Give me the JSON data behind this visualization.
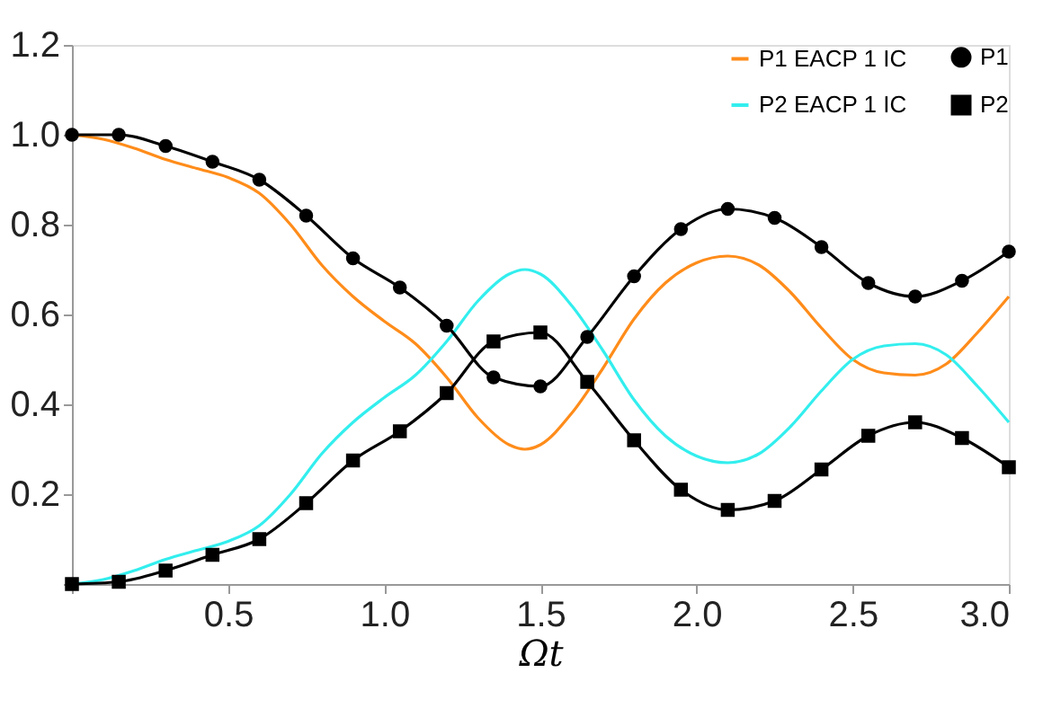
{
  "chart_data": {
    "type": "line",
    "xlabel": "Ωt",
    "xlim": [
      0,
      3.0
    ],
    "ylim": [
      0,
      1.2
    ],
    "xticks": [
      {
        "value": 0,
        "label": null
      },
      0.5,
      {
        "value": 1,
        "label": "1.0"
      },
      1.5,
      {
        "value": 2,
        "label": "2.0"
      },
      2.5,
      {
        "value": 3,
        "label": "3.0"
      }
    ],
    "yticks": [
      {
        "value": 0,
        "label": null
      },
      0.2,
      0.4,
      0.6,
      0.8,
      {
        "value": 1,
        "label": "1.0"
      },
      1.2
    ],
    "grid": false,
    "legend": "top right",
    "line_style": "solid",
    "series": [
      {
        "name": "P1 EACP 1 IC",
        "color": "#ff8c1a",
        "marker": "none",
        "x": [
          0,
          0.1,
          0.2,
          0.3,
          0.4,
          0.5,
          0.6,
          0.7,
          0.8,
          0.9,
          1.0,
          1.1,
          1.2,
          1.3,
          1.4,
          1.45,
          1.5,
          1.6,
          1.7,
          1.8,
          1.9,
          2.0,
          2.1,
          2.2,
          2.3,
          2.4,
          2.5,
          2.6,
          2.7,
          2.8,
          2.9,
          3.0
        ],
        "values": [
          1.0,
          0.99,
          0.97,
          0.945,
          0.925,
          0.905,
          0.87,
          0.8,
          0.71,
          0.64,
          0.585,
          0.535,
          0.46,
          0.37,
          0.31,
          0.3,
          0.31,
          0.38,
          0.48,
          0.59,
          0.67,
          0.715,
          0.73,
          0.71,
          0.65,
          0.57,
          0.5,
          0.47,
          0.465,
          0.49,
          0.56,
          0.64
        ]
      },
      {
        "name": "P2 EACP 1 IC",
        "color": "#33eeee",
        "marker": "none",
        "x": [
          0,
          0.1,
          0.2,
          0.3,
          0.4,
          0.5,
          0.6,
          0.7,
          0.8,
          0.9,
          1.0,
          1.1,
          1.2,
          1.3,
          1.4,
          1.45,
          1.5,
          1.6,
          1.7,
          1.8,
          1.9,
          2.0,
          2.1,
          2.2,
          2.3,
          2.4,
          2.5,
          2.6,
          2.7,
          2.8,
          2.9,
          3.0
        ],
        "values": [
          0,
          0.01,
          0.03,
          0.055,
          0.075,
          0.095,
          0.13,
          0.2,
          0.29,
          0.36,
          0.415,
          0.465,
          0.54,
          0.63,
          0.69,
          0.7,
          0.69,
          0.62,
          0.52,
          0.41,
          0.33,
          0.285,
          0.27,
          0.29,
          0.35,
          0.43,
          0.5,
          0.53,
          0.535,
          0.51,
          0.44,
          0.36
        ]
      },
      {
        "name": "P1",
        "color": "#000000",
        "marker": "circle",
        "x": [
          0,
          0.15,
          0.3,
          0.45,
          0.6,
          0.75,
          0.9,
          1.05,
          1.2,
          1.35,
          1.5,
          1.65,
          1.8,
          1.95,
          2.1,
          2.25,
          2.4,
          2.55,
          2.7,
          2.85,
          3.0
        ],
        "values": [
          1.0,
          1.0,
          0.975,
          0.94,
          0.9,
          0.82,
          0.725,
          0.66,
          0.575,
          0.46,
          0.44,
          0.55,
          0.685,
          0.79,
          0.835,
          0.815,
          0.75,
          0.67,
          0.64,
          0.675,
          0.74
        ]
      },
      {
        "name": "P2",
        "color": "#000000",
        "marker": "square",
        "x": [
          0,
          0.15,
          0.3,
          0.45,
          0.6,
          0.75,
          0.9,
          1.05,
          1.2,
          1.35,
          1.5,
          1.65,
          1.8,
          1.95,
          2.1,
          2.25,
          2.4,
          2.55,
          2.7,
          2.85,
          3.0
        ],
        "values": [
          0,
          0.005,
          0.03,
          0.065,
          0.1,
          0.18,
          0.275,
          0.34,
          0.425,
          0.54,
          0.56,
          0.45,
          0.32,
          0.21,
          0.165,
          0.185,
          0.255,
          0.33,
          0.36,
          0.325,
          0.26
        ]
      }
    ]
  }
}
